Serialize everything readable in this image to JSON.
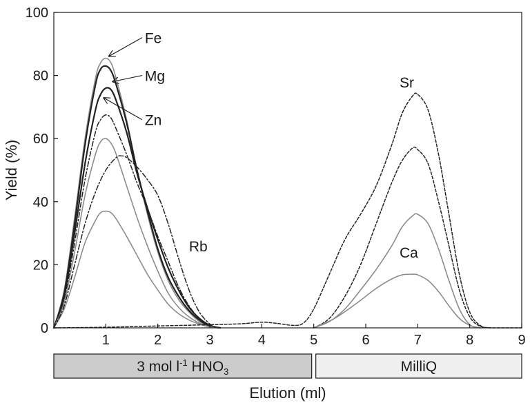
{
  "chart_data": {
    "type": "line",
    "title": "",
    "xlabel": "Elution (ml)",
    "ylabel": "Yield (%)",
    "xlim": [
      0,
      9
    ],
    "ylim": [
      0,
      100
    ],
    "x_ticks": [
      "1",
      "2",
      "3",
      "4",
      "5",
      "6",
      "7",
      "8",
      "9"
    ],
    "y_ticks": [
      "0",
      "20",
      "40",
      "60",
      "80",
      "100"
    ],
    "grid": false,
    "legend": "none",
    "series": [
      {
        "name": "Fe",
        "color": "#8c8c8c",
        "style": "solid",
        "x": [
          0,
          0.2,
          0.4,
          0.6,
          0.8,
          0.9,
          1.0,
          1.1,
          1.2,
          1.4,
          1.6,
          1.8,
          2.0,
          2.2,
          2.4,
          2.6,
          2.8,
          3.0,
          3.2
        ],
        "y": [
          0,
          12,
          35,
          60,
          79,
          84,
          85.5,
          84,
          79,
          66,
          50,
          36,
          24,
          15,
          9,
          5,
          2,
          0.5,
          0
        ]
      },
      {
        "name": "Mg",
        "color": "#222222",
        "style": "solid-thick",
        "x": [
          0,
          0.2,
          0.4,
          0.6,
          0.8,
          0.9,
          1.0,
          1.1,
          1.2,
          1.4,
          1.6,
          1.8,
          2.0,
          2.2,
          2.4,
          2.6,
          2.8,
          3.0,
          3.2
        ],
        "y": [
          0,
          11,
          33,
          58,
          77,
          82,
          83,
          81.5,
          77,
          65,
          50,
          37,
          25,
          16,
          10,
          5.5,
          2.5,
          0.5,
          0
        ]
      },
      {
        "name": "Zn",
        "color": "#222222",
        "style": "solid-thick",
        "x": [
          0,
          0.2,
          0.4,
          0.6,
          0.8,
          0.9,
          1.0,
          1.1,
          1.2,
          1.4,
          1.6,
          1.8,
          2.0,
          2.2,
          2.4,
          2.6,
          2.8,
          3.0,
          3.2
        ],
        "y": [
          0,
          10,
          30,
          52,
          69,
          74,
          76,
          75.5,
          72,
          62,
          49,
          38,
          28,
          19,
          12,
          6.5,
          3,
          0.8,
          0
        ]
      },
      {
        "name": "",
        "color": "#222222",
        "style": "dashdot",
        "x": [
          0,
          0.2,
          0.4,
          0.6,
          0.8,
          0.9,
          1.0,
          1.1,
          1.2,
          1.4,
          1.6,
          1.8,
          2.0,
          2.2,
          2.4,
          2.6,
          2.8,
          3.0,
          3.2
        ],
        "y": [
          0,
          9,
          27,
          47,
          62,
          66,
          67.5,
          66.5,
          63,
          55,
          46,
          38,
          29,
          21,
          13,
          7,
          3,
          0.8,
          0
        ]
      },
      {
        "name": "",
        "color": "#8c8c8c",
        "style": "solid",
        "x": [
          0,
          0.2,
          0.4,
          0.6,
          0.8,
          0.9,
          1.0,
          1.1,
          1.2,
          1.4,
          1.6,
          1.8,
          2.0,
          2.2,
          2.4,
          2.6,
          2.8,
          3.0,
          3.2
        ],
        "y": [
          0,
          8,
          24,
          42,
          55,
          59,
          60,
          58.5,
          55,
          45,
          35,
          26,
          18,
          11,
          6.5,
          3.5,
          1.5,
          0.3,
          0
        ]
      },
      {
        "name": "",
        "color": "#8c8c8c",
        "style": "solid",
        "x": [
          0,
          0.2,
          0.4,
          0.6,
          0.8,
          0.9,
          1.0,
          1.1,
          1.2,
          1.4,
          1.6,
          1.8,
          2.0,
          2.2,
          2.4,
          2.6,
          2.8,
          3.0,
          3.2
        ],
        "y": [
          0,
          6,
          16,
          27,
          34,
          36.5,
          37,
          36.5,
          34.5,
          29,
          23,
          17,
          12,
          7.5,
          4.5,
          2.5,
          1.2,
          0.3,
          0
        ]
      },
      {
        "name": "Rb",
        "color": "#222222",
        "style": "dashdot",
        "x": [
          0,
          0.2,
          0.4,
          0.6,
          0.8,
          1.0,
          1.2,
          1.3,
          1.4,
          1.6,
          1.8,
          2.0,
          2.2,
          2.4,
          2.6,
          2.8,
          3.0,
          3.1,
          3.2
        ],
        "y": [
          0,
          7,
          20,
          33,
          43,
          50,
          54,
          54.5,
          54,
          51,
          47,
          42,
          33,
          22,
          12,
          5,
          1.2,
          0.3,
          0
        ]
      },
      {
        "name": "Sr",
        "color": "#222222",
        "style": "dashed",
        "x": [
          0,
          1,
          2,
          3,
          3.6,
          4.0,
          4.3,
          4.6,
          4.8,
          5.0,
          5.3,
          5.6,
          5.9,
          6.2,
          6.5,
          6.7,
          6.9,
          7.0,
          7.2,
          7.4,
          7.6,
          7.8,
          8.0,
          8.2,
          8.4,
          9.0
        ],
        "y": [
          0,
          0.2,
          0.6,
          1,
          1.3,
          1.8,
          1.4,
          0.8,
          1.5,
          6,
          17,
          28,
          36,
          45,
          58,
          68,
          73.5,
          74,
          69,
          55,
          36,
          17,
          5,
          0.8,
          0,
          0
        ]
      },
      {
        "name": "",
        "color": "#222222",
        "style": "dashed",
        "x": [
          5.0,
          5.3,
          5.6,
          5.9,
          6.2,
          6.5,
          6.7,
          6.9,
          7.0,
          7.2,
          7.4,
          7.6,
          7.8,
          8.0,
          8.2,
          8.4
        ],
        "y": [
          0,
          3,
          10,
          20,
          33,
          46,
          53,
          57,
          56.5,
          52,
          40,
          26,
          12,
          3.5,
          0.5,
          0
        ]
      },
      {
        "name": "Ca",
        "color": "#8c8c8c",
        "style": "solid",
        "x": [
          5.0,
          5.3,
          5.6,
          5.9,
          6.2,
          6.5,
          6.7,
          6.9,
          7.0,
          7.2,
          7.4,
          7.6,
          7.8,
          8.0,
          8.2
        ],
        "y": [
          0,
          2,
          6,
          12,
          18.5,
          26,
          32,
          35.5,
          36,
          33,
          25,
          15,
          6,
          1,
          0
        ]
      },
      {
        "name": "",
        "color": "#8c8c8c",
        "style": "solid",
        "x": [
          5.0,
          5.4,
          5.8,
          6.2,
          6.5,
          6.7,
          6.9,
          7.0,
          7.2,
          7.4,
          7.6,
          7.8,
          8.0,
          8.2
        ],
        "y": [
          0,
          3,
          7.5,
          12.5,
          15.5,
          16.8,
          17,
          16.8,
          15,
          11.5,
          7,
          3,
          0.8,
          0
        ]
      }
    ],
    "annotations": [
      {
        "text": "Fe",
        "ax": 1.75,
        "ay": 92,
        "tx": 1.05,
        "ty": 86
      },
      {
        "text": "Mg",
        "ax": 1.75,
        "ay": 80,
        "tx": 1.12,
        "ty": 78
      },
      {
        "text": "Zn",
        "ax": 1.75,
        "ay": 66,
        "tx": 0.95,
        "ty": 73
      },
      {
        "text": "Rb",
        "ax": 2.6,
        "ay": 26
      },
      {
        "text": "Sr",
        "ax": 6.65,
        "ay": 78
      },
      {
        "text": "Ca",
        "ax": 6.65,
        "ay": 24
      }
    ],
    "bands": [
      {
        "label_main": "3 mol l",
        "label_sup": "-1",
        "label_mid": " HNO",
        "label_sub": "3",
        "x0": 0,
        "x1": 5,
        "fill": "#cccccc"
      },
      {
        "label_main": "MilliQ",
        "x0": 5,
        "x1": 9,
        "fill": "#f0f0f0"
      }
    ]
  }
}
